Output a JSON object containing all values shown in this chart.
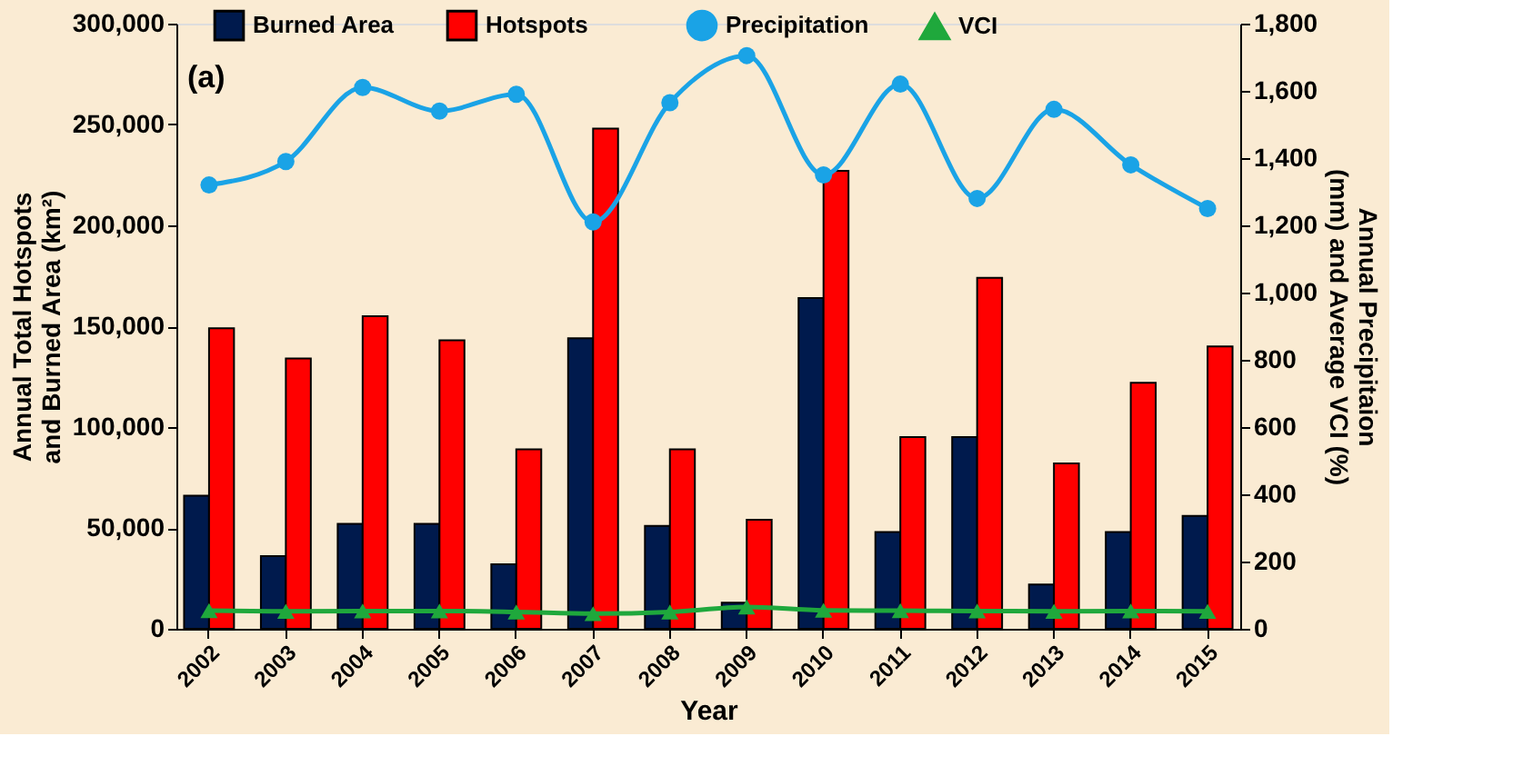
{
  "chart_data": {
    "type": "bar",
    "xlabel": "Year",
    "ylabel": "Annual Total Hotspots  and Burned Area (km²)",
    "y2label": "Annual Precipitaion (mm) and Average VCI (%)",
    "annotations": [
      "(a)"
    ],
    "categories": [
      "2002",
      "2003",
      "2004",
      "2005",
      "2006",
      "2007",
      "2008",
      "2009",
      "2010",
      "2011",
      "2012",
      "2013",
      "2014",
      "2015"
    ],
    "series": [
      {
        "name": "Burned Area",
        "type": "bar",
        "color": "#001a4d",
        "values": [
          66000,
          36000,
          52000,
          52000,
          32000,
          144000,
          51000,
          13000,
          164000,
          48000,
          95000,
          22000,
          48000,
          56000
        ]
      },
      {
        "name": "Hotspots",
        "type": "bar",
        "color": "#ff0000",
        "values": [
          149000,
          134000,
          155000,
          143000,
          89000,
          248000,
          89000,
          54000,
          227000,
          95000,
          174000,
          82000,
          122000,
          140000
        ]
      },
      {
        "name": "Precipitation",
        "type": "line",
        "axis": "y2",
        "marker": "circle",
        "color": "#1aa3e6",
        "values": [
          1320,
          1390,
          1610,
          1540,
          1590,
          1210,
          1565,
          1705,
          1350,
          1620,
          1280,
          1545,
          1380,
          1250
        ]
      },
      {
        "name": "VCI",
        "type": "line",
        "axis": "y2",
        "marker": "triangle",
        "color": "#1fa83c",
        "values": [
          54,
          52,
          53,
          53,
          50,
          45,
          50,
          65,
          55,
          54,
          53,
          52,
          53,
          52
        ]
      }
    ],
    "ylim": [
      0,
      300000
    ],
    "yticks": [
      0,
      {
        "value": 50000,
        "label": "50,000"
      },
      {
        "value": 100000,
        "label": "100,000"
      },
      {
        "value": 150000,
        "label": "150,000"
      },
      {
        "value": 200000,
        "label": "200,000"
      },
      {
        "value": 250000,
        "label": "250,000"
      },
      {
        "value": 300000,
        "label": "300,000"
      }
    ],
    "y2lim": [
      0,
      1800
    ],
    "y2ticks": [
      0,
      200,
      400,
      600,
      800,
      {
        "value": 1000,
        "label": "1,000"
      },
      {
        "value": 1200,
        "label": "1,200"
      },
      {
        "value": 1400,
        "label": "1,400"
      },
      {
        "value": 1600,
        "label": "1,600"
      },
      {
        "value": 1800,
        "label": "1,800"
      }
    ],
    "grid": false,
    "legend": "top"
  }
}
